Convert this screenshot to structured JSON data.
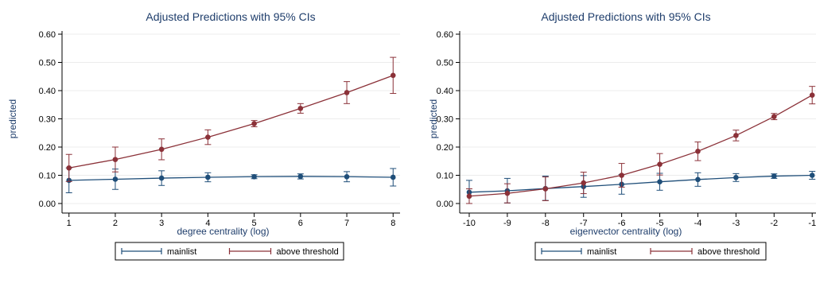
{
  "chart_data": [
    {
      "type": "line",
      "title": "Adjusted Predictions with 95% CIs",
      "xlabel": "degree centrality (log)",
      "ylabel": "predicted",
      "ylim": [
        0,
        0.6
      ],
      "yticks": [
        "0.00",
        "0.10",
        "0.20",
        "0.30",
        "0.40",
        "0.50",
        "0.60"
      ],
      "x": [
        1,
        2,
        3,
        4,
        5,
        6,
        7,
        8
      ],
      "xticks": [
        "1",
        "2",
        "3",
        "4",
        "5",
        "6",
        "7",
        "8"
      ],
      "grid": true,
      "legend_position": "bottom",
      "series": [
        {
          "name": "mainlist",
          "color": "#1f4e79",
          "values": [
            0.082,
            0.086,
            0.09,
            0.093,
            0.095,
            0.096,
            0.095,
            0.093
          ],
          "lower": [
            0.038,
            0.05,
            0.064,
            0.077,
            0.088,
            0.087,
            0.077,
            0.062
          ],
          "upper": [
            0.126,
            0.122,
            0.116,
            0.109,
            0.102,
            0.105,
            0.113,
            0.124
          ]
        },
        {
          "name": "above threshold",
          "color": "#8b3138",
          "values": [
            0.126,
            0.156,
            0.192,
            0.235,
            0.283,
            0.337,
            0.393,
            0.454
          ],
          "lower": [
            0.078,
            0.112,
            0.155,
            0.209,
            0.272,
            0.32,
            0.354,
            0.39
          ],
          "upper": [
            0.174,
            0.2,
            0.229,
            0.261,
            0.294,
            0.354,
            0.432,
            0.518
          ]
        }
      ]
    },
    {
      "type": "line",
      "title": "Adjusted Predictions with 95% CIs",
      "xlabel": "eigenvector centrality (log)",
      "ylabel": "predicted",
      "ylim": [
        0,
        0.6
      ],
      "yticks": [
        "0.00",
        "0.10",
        "0.20",
        "0.30",
        "0.40",
        "0.50",
        "0.60"
      ],
      "x": [
        -10,
        -9,
        -8,
        -7,
        -6,
        -5,
        -4,
        -3,
        -2,
        -1
      ],
      "xticks": [
        "-10",
        "-9",
        "-8",
        "-7",
        "-6",
        "-5",
        "-4",
        "-3",
        "-2",
        "-1"
      ],
      "grid": true,
      "legend_position": "bottom",
      "series": [
        {
          "name": "mainlist",
          "color": "#1f4e79",
          "values": [
            0.04,
            0.045,
            0.053,
            0.06,
            0.068,
            0.077,
            0.085,
            0.092,
            0.097,
            0.1
          ],
          "lower": [
            0.0,
            0.002,
            0.011,
            0.022,
            0.033,
            0.047,
            0.061,
            0.078,
            0.089,
            0.086
          ],
          "upper": [
            0.082,
            0.089,
            0.097,
            0.099,
            0.103,
            0.107,
            0.109,
            0.106,
            0.105,
            0.114
          ]
        },
        {
          "name": "above threshold",
          "color": "#8b3138",
          "values": [
            0.026,
            0.036,
            0.052,
            0.073,
            0.1,
            0.139,
            0.185,
            0.241,
            0.308,
            0.384
          ],
          "lower": [
            0.0,
            0.002,
            0.01,
            0.035,
            0.058,
            0.101,
            0.152,
            0.222,
            0.297,
            0.353
          ],
          "upper": [
            0.052,
            0.07,
            0.094,
            0.111,
            0.142,
            0.177,
            0.218,
            0.26,
            0.319,
            0.415
          ]
        }
      ]
    }
  ]
}
